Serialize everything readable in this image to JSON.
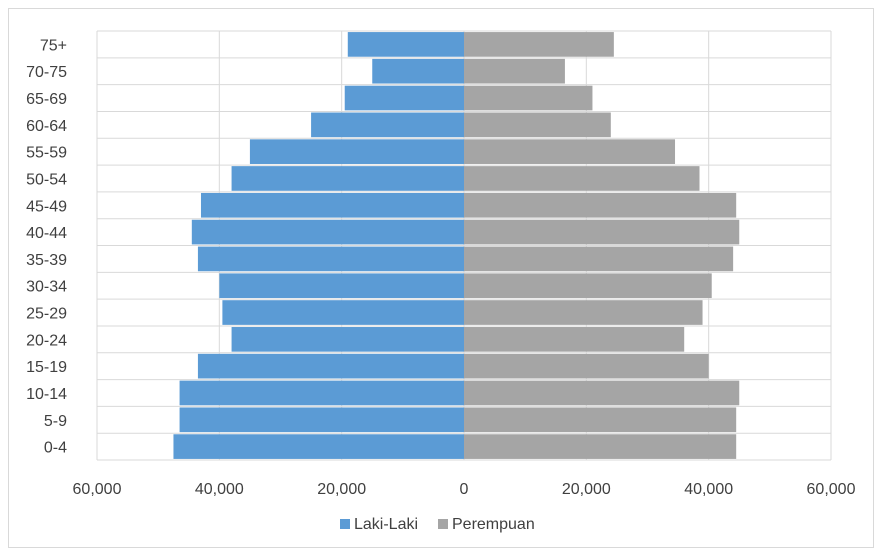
{
  "chart_data": {
    "type": "bar",
    "orientation": "horizontal",
    "layout": "population-pyramid",
    "categories": [
      "75+",
      "70-75",
      "65-69",
      "60-64",
      "55-59",
      "50-54",
      "45-49",
      "40-44",
      "35-39",
      "30-34",
      "25-29",
      "20-24",
      "15-19",
      "10-14",
      "5-9",
      "0-4"
    ],
    "series": [
      {
        "name": "Laki-Laki",
        "color": "#5b9bd5",
        "side": "left",
        "values": [
          19000,
          15000,
          19500,
          25000,
          35000,
          38000,
          43000,
          44500,
          43500,
          40000,
          39500,
          38000,
          43500,
          46500,
          46500,
          47500
        ]
      },
      {
        "name": "Perempuan",
        "color": "#a5a5a5",
        "side": "right",
        "values": [
          24500,
          16500,
          21000,
          24000,
          34500,
          38500,
          44500,
          45000,
          44000,
          40500,
          39000,
          36000,
          40000,
          45000,
          44500,
          44500
        ]
      }
    ],
    "xlim": [
      -60000,
      60000
    ],
    "x_ticks": [
      "60,000",
      "40,000",
      "20,000",
      "0",
      "20,000",
      "40,000",
      "60,000"
    ],
    "title": "",
    "xlabel": "",
    "ylabel": "",
    "grid": true,
    "legend_position": "bottom",
    "gridline_color": "#d9d9d9"
  }
}
